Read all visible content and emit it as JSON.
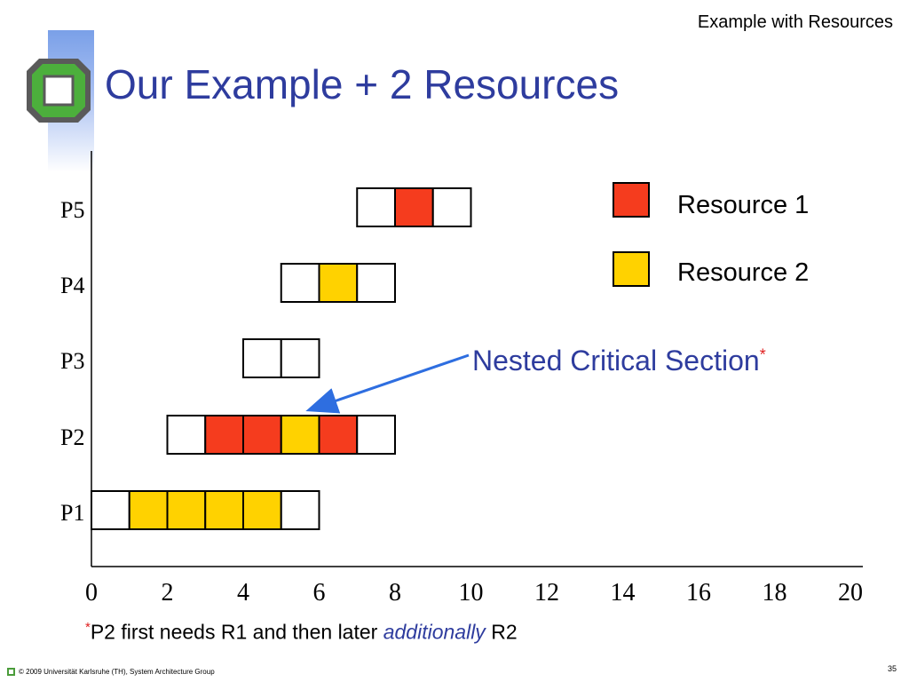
{
  "header": {
    "section_title": "Example with Resources"
  },
  "slide": {
    "title": "Our Example + 2 Resources"
  },
  "colors": {
    "resource1": "#f53c1e",
    "resource2": "#ffd200",
    "title": "#2e3c9e",
    "arrow": "#2e6ee0"
  },
  "chart_data": {
    "type": "gantt",
    "x_ticks": [
      0,
      2,
      4,
      6,
      8,
      10,
      12,
      14,
      16,
      18,
      20
    ],
    "xlim": [
      0,
      20
    ],
    "rows": [
      {
        "label": "P5",
        "start": 7,
        "cells": [
          "none",
          "r1",
          "none"
        ]
      },
      {
        "label": "P4",
        "start": 5,
        "cells": [
          "none",
          "r2",
          "none"
        ]
      },
      {
        "label": "P3",
        "start": 4,
        "cells": [
          "none",
          "none"
        ]
      },
      {
        "label": "P2",
        "start": 2,
        "cells": [
          "none",
          "r1",
          "r1",
          "r2",
          "r1",
          "none"
        ]
      },
      {
        "label": "P1",
        "start": 0,
        "cells": [
          "none",
          "r2",
          "r2",
          "r2",
          "r2",
          "none"
        ]
      }
    ],
    "legend": [
      {
        "key": "r1",
        "label": "Resource 1"
      },
      {
        "key": "r2",
        "label": "Resource 2"
      }
    ],
    "annotation": {
      "text": "Nested Critical Section",
      "marker": "*"
    }
  },
  "footnote": {
    "marker": "*",
    "pre": "P2 first needs R1 and then later ",
    "emph": "additionally",
    "post": " R2"
  },
  "footer": {
    "copyright": "© 2009 Universität Karlsruhe (TH), System Architecture Group"
  },
  "page": {
    "number": "35"
  }
}
